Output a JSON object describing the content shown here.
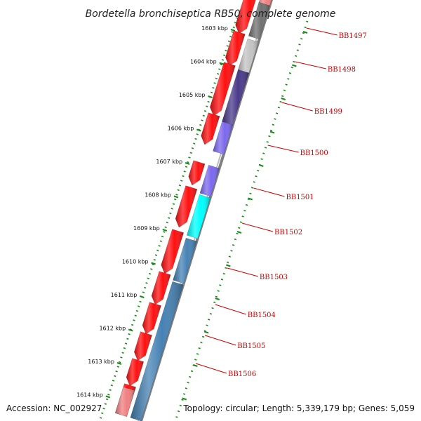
{
  "title": "Bordetella bronchiseptica RB50, complete genome",
  "footer": {
    "accession": "Accession: NC_002927",
    "summary": "Topology: circular; Length: 5,339,179 bp; Genes: 5,059"
  },
  "ruler_ticks": [
    "1603 kbp",
    "1604 kbp",
    "1605 kbp",
    "1606 kbp",
    "1607 kbp",
    "1608 kbp",
    "1609 kbp",
    "1610 kbp",
    "1611 kbp",
    "1612 kbp",
    "1613 kbp",
    "1614 kbp"
  ],
  "gene_labels": [
    "BB1497",
    "BB1498",
    "BB1499",
    "BB1500",
    "BB1501",
    "BB1502",
    "BB1503",
    "BB1504",
    "BB1505",
    "BB1506"
  ],
  "colors": {
    "backbone": "#808080",
    "gc_dots": "#1a8a1a",
    "cds_reverse": "#ff1010",
    "cds_faded": "#f08080",
    "label_red": "#cc0000",
    "grey_dark": "#707070",
    "grey_light": "#c4c4c4",
    "navy": "#4a3a8a",
    "purple": "#7b68ee",
    "cyan": "#00ffff",
    "steel": "#4682b4"
  }
}
